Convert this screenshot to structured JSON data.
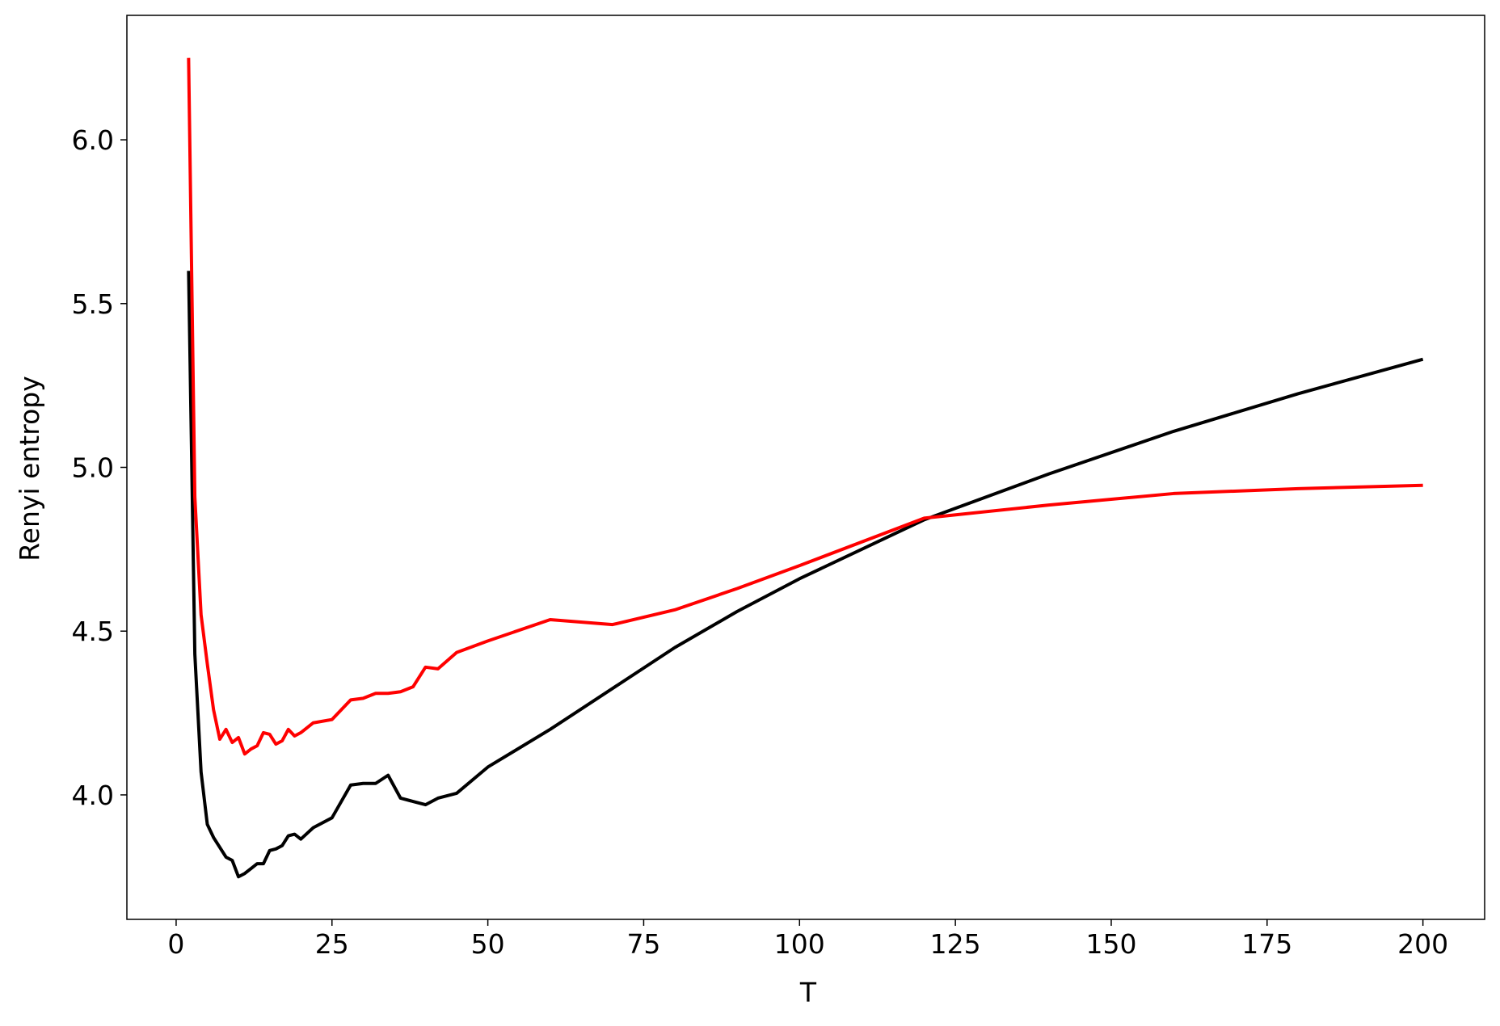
{
  "chart_data": {
    "type": "line",
    "x_label": "T",
    "y_label": "Renyi entropy",
    "x": [
      2,
      3,
      4,
      5,
      6,
      7,
      8,
      9,
      10,
      11,
      12,
      13,
      14,
      15,
      16,
      17,
      18,
      19,
      20,
      22,
      25,
      28,
      30,
      32,
      34,
      36,
      38,
      40,
      42,
      45,
      50,
      60,
      70,
      80,
      90,
      100,
      120,
      140,
      160,
      180,
      200
    ],
    "series": [
      {
        "name": "black",
        "color": "#000000",
        "values": [
          5.6,
          4.43,
          4.07,
          3.91,
          3.87,
          3.84,
          3.81,
          3.8,
          3.75,
          3.76,
          3.775,
          3.79,
          3.79,
          3.83,
          3.835,
          3.845,
          3.875,
          3.88,
          3.865,
          3.9,
          3.93,
          4.03,
          4.035,
          4.035,
          4.06,
          3.99,
          3.98,
          3.97,
          3.99,
          4.005,
          4.085,
          4.2,
          4.325,
          4.45,
          4.56,
          4.66,
          4.84,
          4.98,
          5.11,
          5.225,
          5.33
        ]
      },
      {
        "name": "red",
        "color": "#ff0000",
        "values": [
          6.25,
          4.91,
          4.55,
          4.4,
          4.26,
          4.17,
          4.2,
          4.16,
          4.175,
          4.125,
          4.14,
          4.15,
          4.19,
          4.185,
          4.155,
          4.165,
          4.2,
          4.18,
          4.19,
          4.22,
          4.23,
          4.29,
          4.295,
          4.31,
          4.31,
          4.315,
          4.33,
          4.39,
          4.385,
          4.435,
          4.47,
          4.535,
          4.52,
          4.565,
          4.63,
          4.7,
          4.845,
          4.885,
          4.92,
          4.935,
          4.945
        ]
      }
    ],
    "xlim": [
      -7.9,
      209.9
    ],
    "ylim": [
      3.62,
      6.38
    ],
    "xticks": [
      0,
      25,
      50,
      75,
      100,
      125,
      150,
      175,
      200
    ],
    "yticks": [
      {
        "value": 4,
        "label": "4.0"
      },
      4.5,
      {
        "value": 5,
        "label": "5.0"
      },
      5.5,
      {
        "value": 6,
        "label": "6.0"
      }
    ]
  }
}
